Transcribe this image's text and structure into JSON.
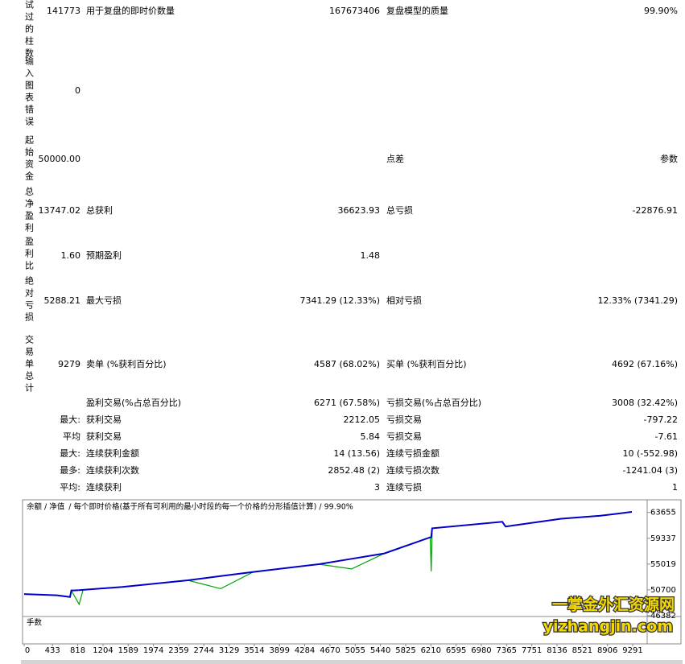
{
  "report": {
    "rows": [
      {
        "head": "试过的柱数",
        "value": "141773",
        "mid": {
          "label": "用于复盘的即时价数量",
          "value": "167673406"
        },
        "right": {
          "label": "复盘模型的质量",
          "value": "99.90%"
        }
      },
      {
        "head": "输入图表错误",
        "value": "0"
      },
      {
        "head": "起始资金",
        "value": "50000.00",
        "right": {
          "label": "点差",
          "value": "参数"
        }
      },
      {
        "head": "总净盈利",
        "value": "13747.02",
        "mid": {
          "label": "总获利",
          "value": "36623.93"
        },
        "right": {
          "label": "总亏损",
          "value": "-22876.91"
        }
      },
      {
        "head": "盈利比",
        "value": "1.60",
        "mid": {
          "label": "预期盈利",
          "value": "1.48"
        }
      },
      {
        "head": "绝对亏损",
        "value": "5288.21",
        "mid": {
          "label": "最大亏损",
          "value": "7341.29 (12.33%)"
        },
        "right": {
          "label": "相对亏损",
          "value": "12.33% (7341.29)"
        }
      },
      {
        "head": "交易单总计",
        "value": "9279",
        "mid": {
          "label": "卖单 (%获利百分比)",
          "value": "4587 (68.02%)"
        },
        "right": {
          "label": "买单 (%获利百分比)",
          "value": "4692 (67.16%)"
        }
      },
      {
        "mid": {
          "label": "盈利交易(%占总百分比)",
          "value": "6271 (67.58%)"
        },
        "right": {
          "label": "亏损交易(%占总百分比)",
          "value": "3008 (32.42%)"
        }
      },
      {
        "prefix": "最大:",
        "mid": {
          "label": "获利交易",
          "value": "2212.05"
        },
        "right": {
          "label": "亏损交易",
          "value": "-797.22"
        }
      },
      {
        "prefix": "平均",
        "mid": {
          "label": "获利交易",
          "value": "5.84"
        },
        "right": {
          "label": "亏损交易",
          "value": "-7.61"
        }
      },
      {
        "prefix": "最大:",
        "mid": {
          "label": "连续获利金额",
          "value": "14 (13.56)"
        },
        "right": {
          "label": "连续亏损金额",
          "value": "10 (-552.98)"
        }
      },
      {
        "prefix": "最多:",
        "mid": {
          "label": "连续获利次数",
          "value": "2852.48 (2)"
        },
        "right": {
          "label": "连续亏损次数",
          "value": "-1241.04 (3)"
        }
      },
      {
        "prefix": "平均:",
        "mid": {
          "label": "连续获利",
          "value": "3"
        },
        "right": {
          "label": "连续亏损",
          "value": "1"
        }
      }
    ]
  },
  "chart_data": {
    "type": "line",
    "legend_separator": "/",
    "subtitle": "/ 每个即时价格(基于所有可利用的最小时段的每一个价格的分形插值计算) / 99.90%",
    "lots_label": "手数",
    "x": [
      0,
      500,
      700,
      720,
      840,
      900,
      1500,
      2500,
      3000,
      3500,
      4500,
      5000,
      5500,
      6200,
      6215,
      6230,
      7300,
      7350,
      8200,
      8800,
      9279
    ],
    "series": [
      {
        "name": "余额",
        "color": "#0000c8",
        "values": [
          50000,
          49800,
          49500,
          50600,
          50650,
          50700,
          51200,
          52300,
          53000,
          53700,
          55000,
          55900,
          56800,
          59500,
          59500,
          61000,
          62100,
          61300,
          62600,
          63100,
          63747
        ]
      },
      {
        "name": "净值",
        "color": "#00a000",
        "values": [
          50000,
          49800,
          49500,
          50600,
          48300,
          50700,
          51200,
          52300,
          50900,
          53700,
          55000,
          54200,
          56800,
          59500,
          53800,
          61000,
          62100,
          61300,
          62600,
          63100,
          63747
        ]
      }
    ],
    "xlim": [
      0,
      9500
    ],
    "ylim": [
      46382,
      65500
    ],
    "yticks": [
      63655,
      59337,
      55019,
      50700,
      46382
    ],
    "xticks": [
      0,
      433,
      818,
      1204,
      1589,
      1974,
      2359,
      2744,
      3129,
      3514,
      3899,
      4284,
      4670,
      5055,
      5440,
      5825,
      6210,
      6595,
      6980,
      7365,
      7751,
      8136,
      8521,
      8906,
      9291
    ],
    "watermark": [
      "一掌金外汇资源网",
      "yizhangjin.com"
    ]
  }
}
